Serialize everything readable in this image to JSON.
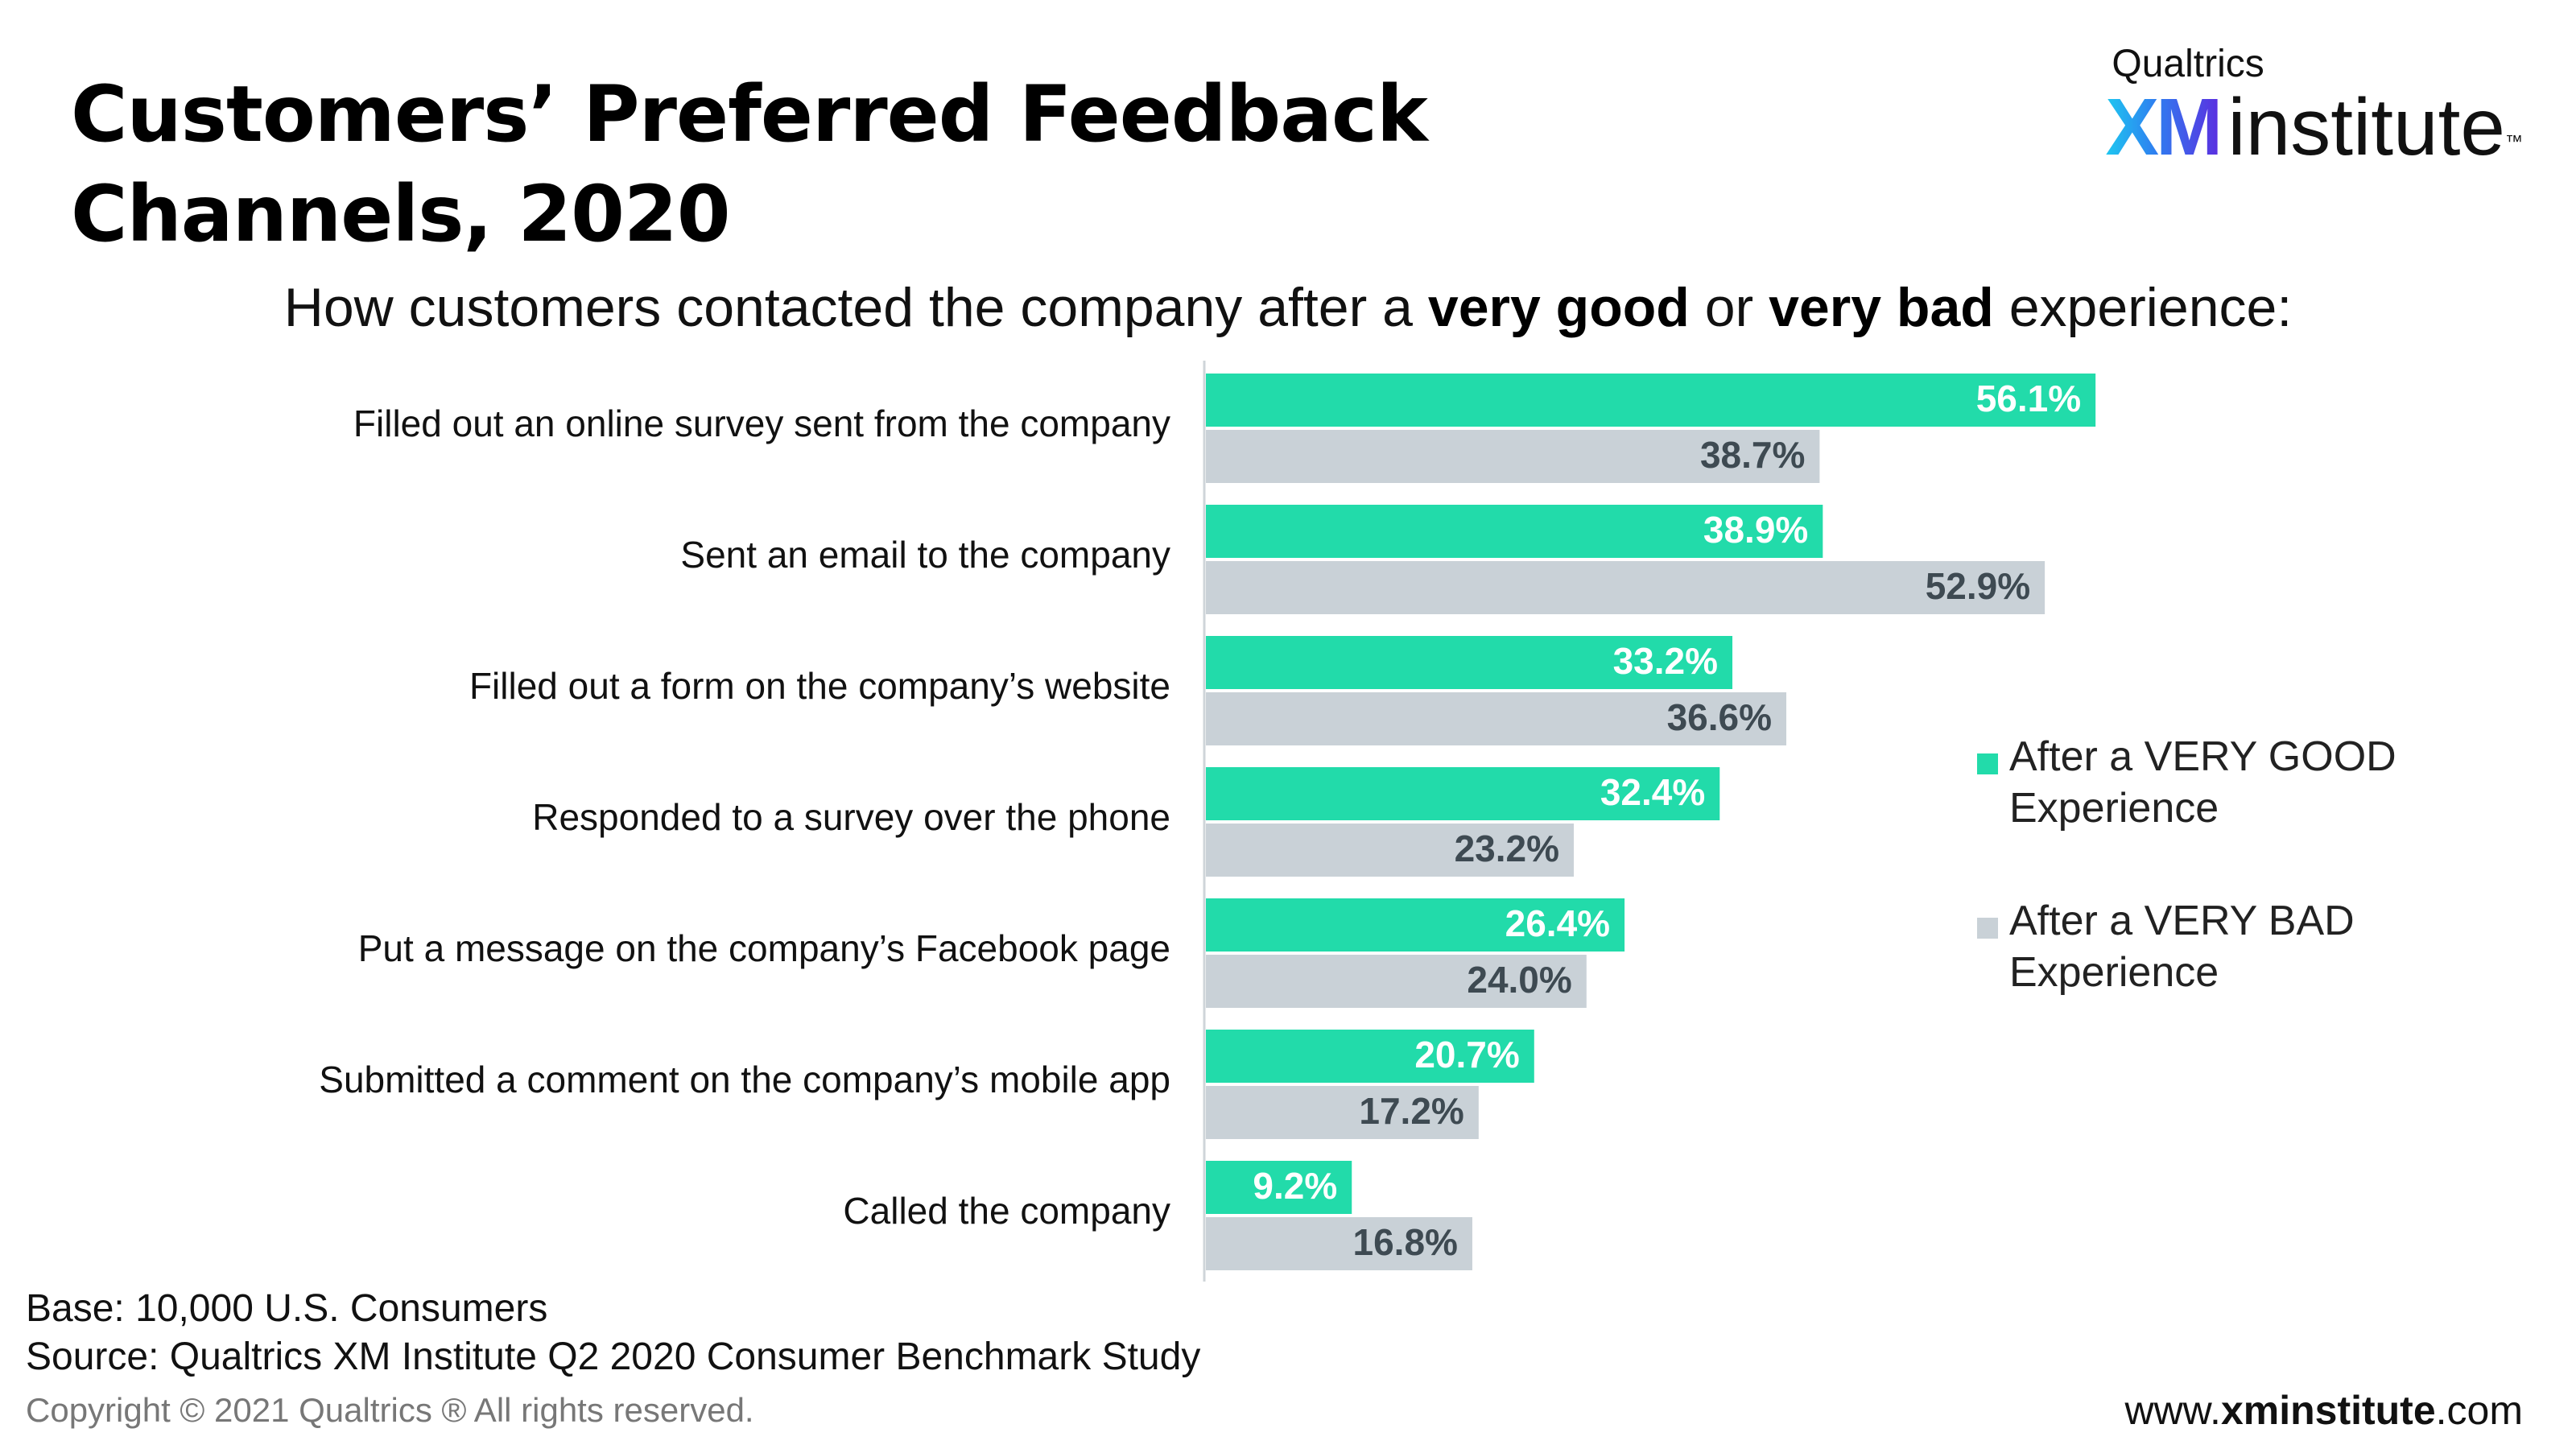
{
  "title_line1": "Customers’ Preferred Feedback",
  "title_line2": "Channels, 2020",
  "logo": {
    "top": "Qualtrics",
    "xm": "XM",
    "institute": "institute",
    "tm": "™"
  },
  "subtitle": {
    "pre": "How customers contacted the company after a ",
    "bold1": "very good",
    "mid": " or ",
    "bold2": "very bad",
    "post": " experience:"
  },
  "chart_data": {
    "type": "bar",
    "orientation": "horizontal",
    "categories": [
      "Filled out an online survey sent from the company",
      "Sent an email to the company",
      "Filled out a form on the company’s website",
      "Responded to a survey over the phone",
      "Put a message on the company’s Facebook page",
      "Submitted a comment on the company’s mobile app",
      "Called the company"
    ],
    "series": [
      {
        "name": "After a VERY GOOD Experience",
        "color": "#22dbaa",
        "label_color": "#ffffff",
        "values": [
          56.1,
          38.9,
          33.2,
          32.4,
          26.4,
          20.7,
          9.2
        ]
      },
      {
        "name": "After a VERY BAD Experience",
        "color": "#c9d1d7",
        "label_color": "#3e4a52",
        "values": [
          38.7,
          52.9,
          36.6,
          23.2,
          24.0,
          17.2,
          16.8
        ]
      }
    ],
    "value_format": "percent_1dp",
    "xlim": [
      0,
      100
    ],
    "grid": false,
    "legend_position": "right"
  },
  "legend": {
    "good": {
      "line1": "After a VERY GOOD",
      "line2": "Experience"
    },
    "bad": {
      "line1": "After a VERY BAD",
      "line2": "Experience"
    }
  },
  "footer": {
    "base": "Base: 10,000 U.S. Consumers",
    "source": "Source: Qualtrics XM Institute Q2 2020 Consumer Benchmark Study",
    "copyright": "Copyright © 2021 Qualtrics ® All rights reserved.",
    "url_pre": "www.",
    "url_bold": "xminstitute",
    "url_post": ".com"
  }
}
